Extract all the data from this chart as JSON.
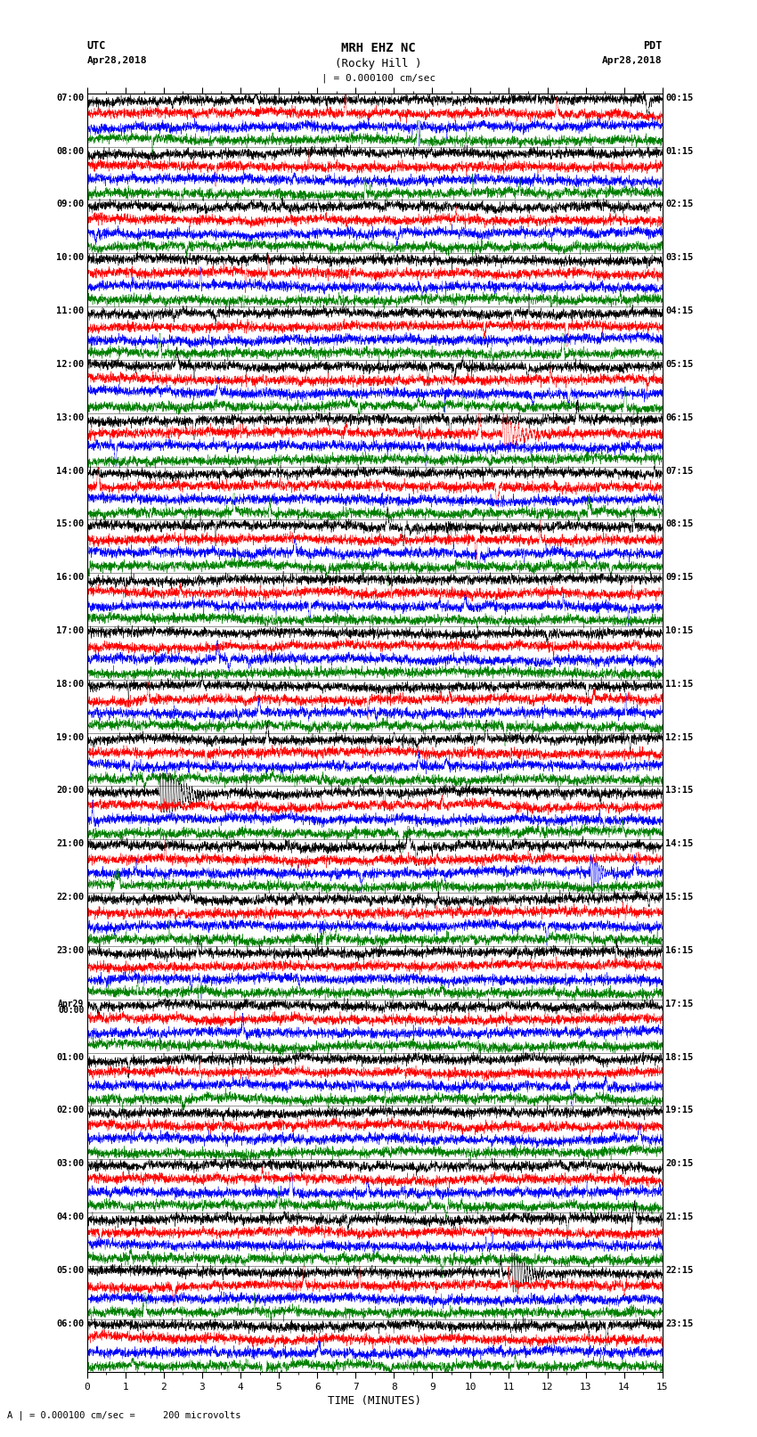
{
  "title_line1": "MRH EHZ NC",
  "title_line2": "(Rocky Hill )",
  "scale_text": "| = 0.000100 cm/sec",
  "left_label_top": "UTC",
  "left_label_date": "Apr28,2018",
  "right_label_top": "PDT",
  "right_label_date": "Apr28,2018",
  "bottom_label": "TIME (MINUTES)",
  "bottom_note": "A | = 0.000100 cm/sec =     200 microvolts",
  "utc_times": [
    "07:00",
    "08:00",
    "09:00",
    "10:00",
    "11:00",
    "12:00",
    "13:00",
    "14:00",
    "15:00",
    "16:00",
    "17:00",
    "18:00",
    "19:00",
    "20:00",
    "21:00",
    "22:00",
    "23:00",
    "Apr29\n00:00",
    "01:00",
    "02:00",
    "03:00",
    "04:00",
    "05:00",
    "06:00"
  ],
  "pdt_times": [
    "00:15",
    "01:15",
    "02:15",
    "03:15",
    "04:15",
    "05:15",
    "06:15",
    "07:15",
    "08:15",
    "09:15",
    "10:15",
    "11:15",
    "12:15",
    "13:15",
    "14:15",
    "15:15",
    "16:15",
    "17:15",
    "18:15",
    "19:15",
    "20:15",
    "21:15",
    "22:15",
    "23:15"
  ],
  "colors": [
    "black",
    "red",
    "blue",
    "green"
  ],
  "n_hours": 24,
  "x_min": 0,
  "x_max": 15,
  "background_color": "white",
  "fig_width": 8.5,
  "fig_height": 16.13,
  "dpi": 100
}
